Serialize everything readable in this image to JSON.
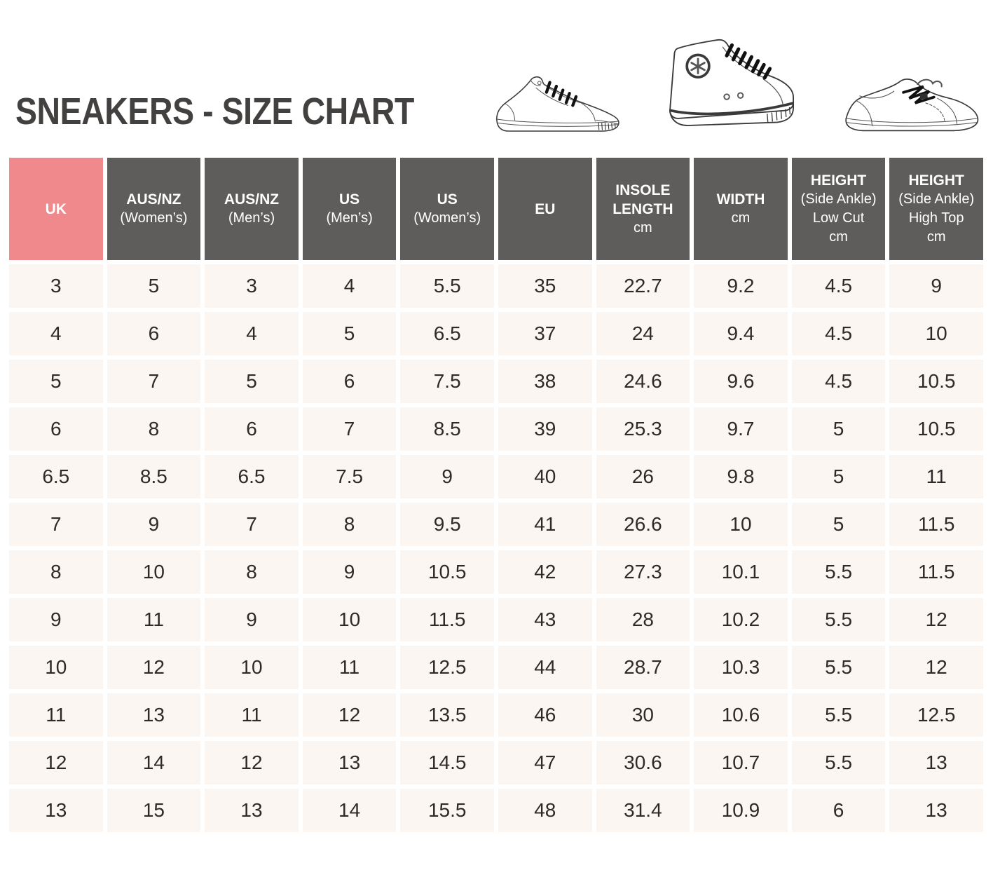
{
  "title": "SNEAKERS - SIZE CHART",
  "illustrations": [
    "low-top-sneaker",
    "high-top-sneaker",
    "skate-sneaker"
  ],
  "colors": {
    "uk_header_pink": "#F0898C",
    "header_gray": "#5F5C5C",
    "cell_background": "#FBF6F1",
    "header_text": "#FFFFFF",
    "cell_text": "#2D2A2A",
    "title_text": "#434040"
  },
  "chart_data": {
    "type": "table",
    "title": "SNEAKERS - SIZE CHART",
    "columns": [
      {
        "id": "uk",
        "bold": [
          "UK"
        ],
        "regular": [],
        "highlight": true
      },
      {
        "id": "ausnz-womens",
        "bold": [
          "AUS/NZ"
        ],
        "regular": [
          "(Women’s)"
        ],
        "highlight": false
      },
      {
        "id": "ausnz-mens",
        "bold": [
          "AUS/NZ"
        ],
        "regular": [
          "(Men’s)"
        ],
        "highlight": false
      },
      {
        "id": "us-mens",
        "bold": [
          "US"
        ],
        "regular": [
          "(Men’s)"
        ],
        "highlight": false
      },
      {
        "id": "us-womens",
        "bold": [
          "US"
        ],
        "regular": [
          "(Women’s)"
        ],
        "highlight": false
      },
      {
        "id": "eu",
        "bold": [
          "EU"
        ],
        "regular": [],
        "highlight": false
      },
      {
        "id": "insole-length",
        "bold": [
          "INSOLE",
          "LENGTH"
        ],
        "regular": [
          "cm"
        ],
        "highlight": false
      },
      {
        "id": "width",
        "bold": [
          "WIDTH"
        ],
        "regular": [
          "cm"
        ],
        "highlight": false
      },
      {
        "id": "height-low-cut",
        "bold": [
          "HEIGHT"
        ],
        "regular": [
          "(Side Ankle)",
          "Low Cut",
          "cm"
        ],
        "highlight": false
      },
      {
        "id": "height-high-top",
        "bold": [
          "HEIGHT"
        ],
        "regular": [
          "(Side Ankle)",
          "High Top",
          "cm"
        ],
        "highlight": false
      }
    ],
    "rows": [
      [
        "3",
        "5",
        "3",
        "4",
        "5.5",
        "35",
        "22.7",
        "9.2",
        "4.5",
        "9"
      ],
      [
        "4",
        "6",
        "4",
        "5",
        "6.5",
        "37",
        "24",
        "9.4",
        "4.5",
        "10"
      ],
      [
        "5",
        "7",
        "5",
        "6",
        "7.5",
        "38",
        "24.6",
        "9.6",
        "4.5",
        "10.5"
      ],
      [
        "6",
        "8",
        "6",
        "7",
        "8.5",
        "39",
        "25.3",
        "9.7",
        "5",
        "10.5"
      ],
      [
        "6.5",
        "8.5",
        "6.5",
        "7.5",
        "9",
        "40",
        "26",
        "9.8",
        "5",
        "11"
      ],
      [
        "7",
        "9",
        "7",
        "8",
        "9.5",
        "41",
        "26.6",
        "10",
        "5",
        "11.5"
      ],
      [
        "8",
        "10",
        "8",
        "9",
        "10.5",
        "42",
        "27.3",
        "10.1",
        "5.5",
        "11.5"
      ],
      [
        "9",
        "11",
        "9",
        "10",
        "11.5",
        "43",
        "28",
        "10.2",
        "5.5",
        "12"
      ],
      [
        "10",
        "12",
        "10",
        "11",
        "12.5",
        "44",
        "28.7",
        "10.3",
        "5.5",
        "12"
      ],
      [
        "11",
        "13",
        "11",
        "12",
        "13.5",
        "46",
        "30",
        "10.6",
        "5.5",
        "12.5"
      ],
      [
        "12",
        "14",
        "12",
        "13",
        "14.5",
        "47",
        "30.6",
        "10.7",
        "5.5",
        "13"
      ],
      [
        "13",
        "15",
        "13",
        "14",
        "15.5",
        "48",
        "31.4",
        "10.9",
        "6",
        "13"
      ]
    ]
  }
}
